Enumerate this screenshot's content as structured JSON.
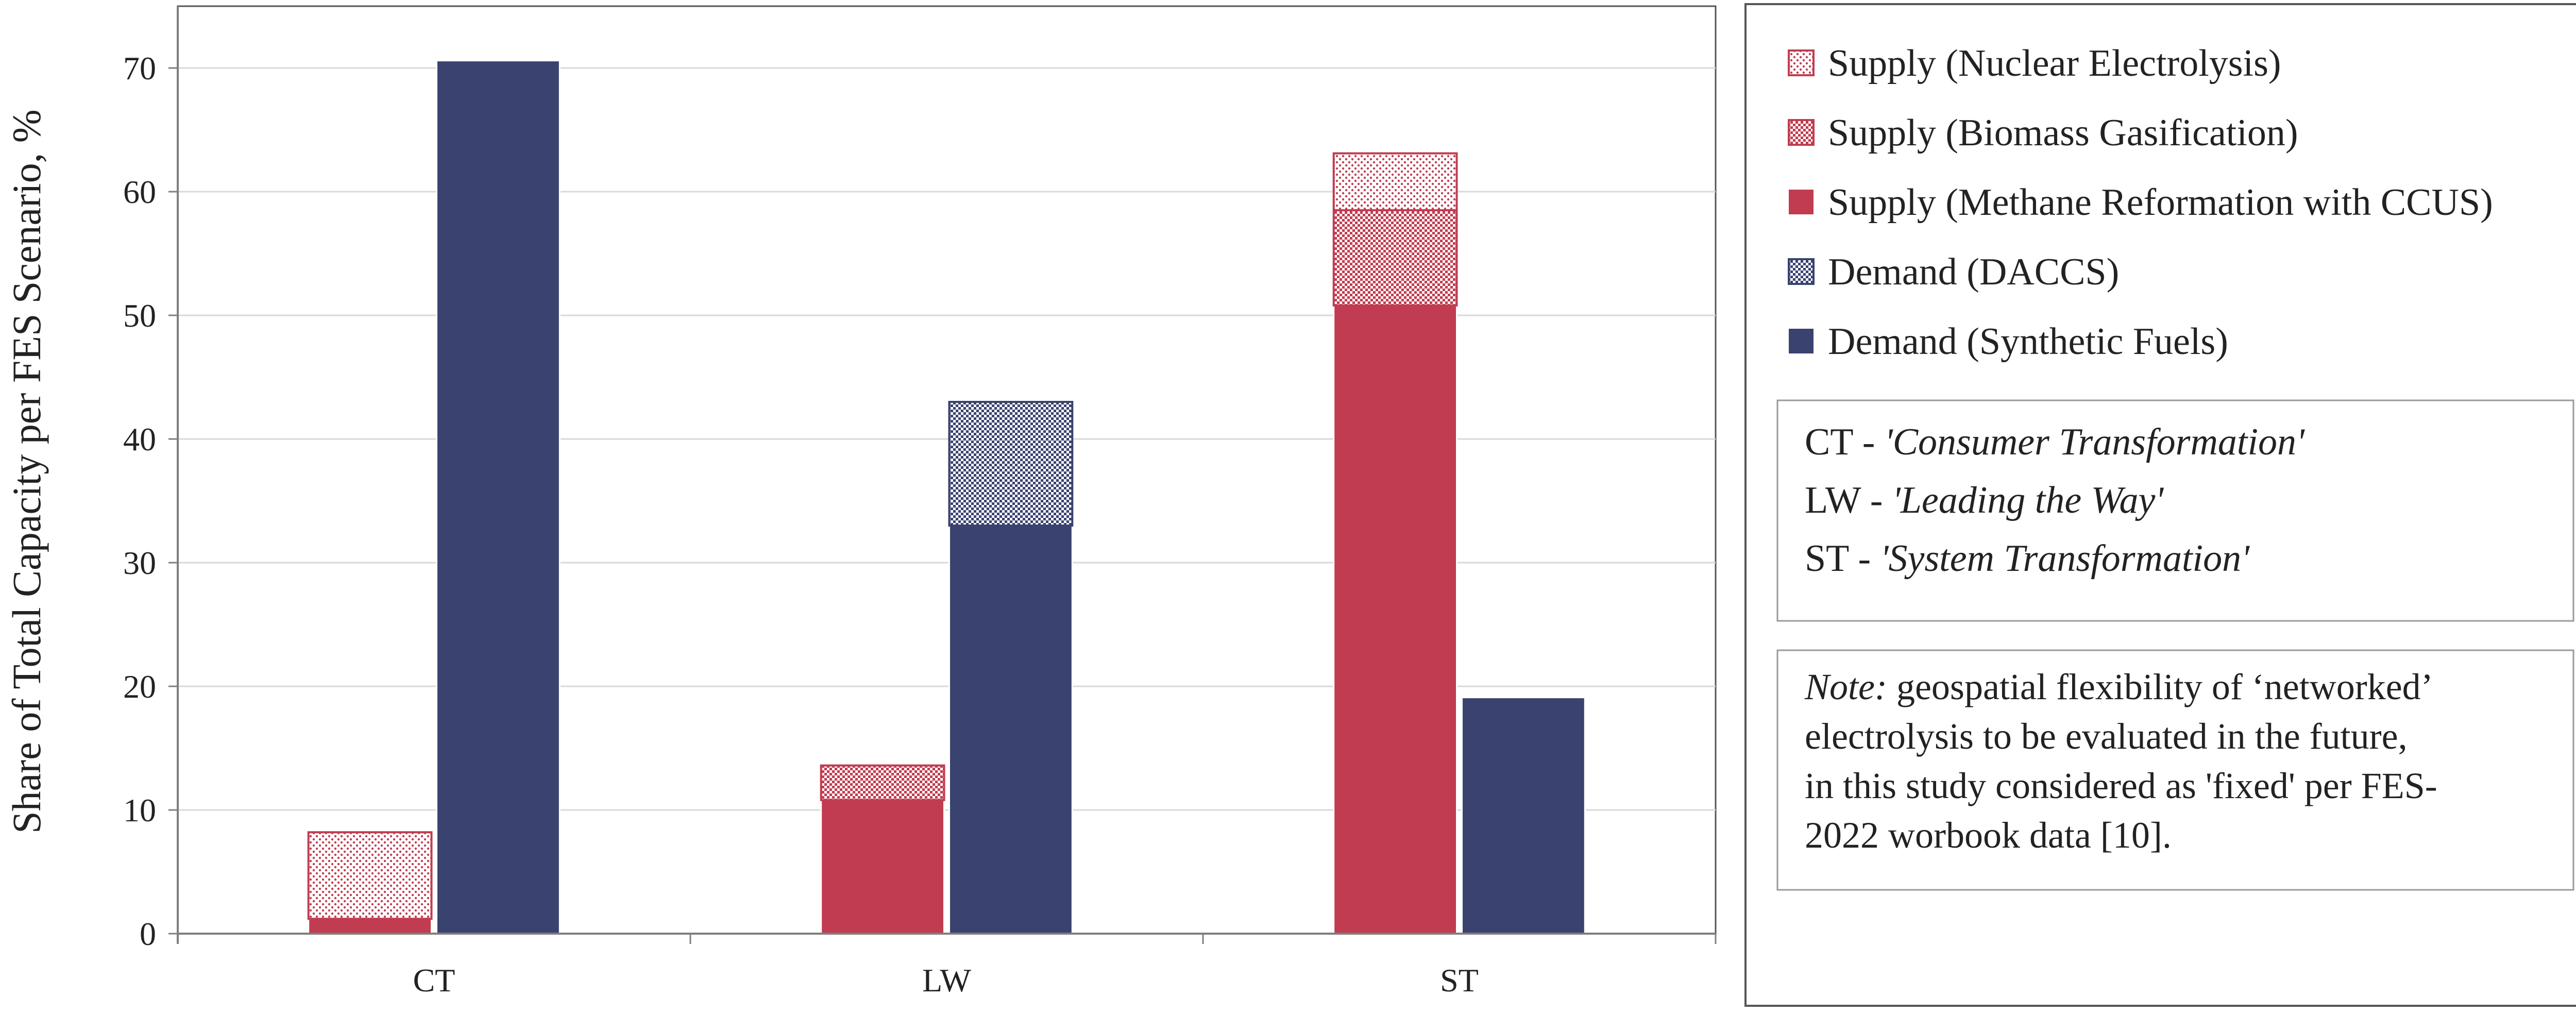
{
  "colors": {
    "supply": "#c13c50",
    "demand": "#3a426f",
    "grid": "#d9d9d9",
    "axis": "#7f7f7f",
    "frame": "#555555"
  },
  "chart_data": {
    "type": "bar",
    "stacked": true,
    "categories": [
      "CT",
      "LW",
      "ST"
    ],
    "ylabel": "Share of Total Capacity per FES Scenario, %",
    "xlabel": "",
    "ylim": [
      0,
      75
    ],
    "yticks": [
      0,
      10,
      20,
      30,
      40,
      50,
      60,
      70
    ],
    "grid": true,
    "legend_position": "right",
    "groups": [
      {
        "name": "Supply",
        "series": [
          {
            "name": "Supply (Methane Reformation with CCUS)",
            "pattern": "solid",
            "color": "#c13c50",
            "values": [
              1.2,
              10.8,
              50.8
            ]
          },
          {
            "name": "Supply (Biomass Gasification)",
            "pattern": "checker",
            "color": "#c13c50",
            "values": [
              0,
              2.8,
              7.7
            ]
          },
          {
            "name": "Supply (Nuclear Electrolysis)",
            "pattern": "dots",
            "color": "#c13c50",
            "values": [
              7.0,
              0,
              4.6
            ]
          }
        ]
      },
      {
        "name": "Demand",
        "series": [
          {
            "name": "Demand (Synthetic Fuels)",
            "pattern": "solid",
            "color": "#3a426f",
            "values": [
              70.6,
              33.0,
              19.1
            ]
          },
          {
            "name": "Demand (DACCS)",
            "pattern": "checker",
            "color": "#3a426f",
            "values": [
              0,
              10.0,
              0
            ]
          }
        ]
      }
    ],
    "legend": [
      "Supply (Nuclear Electrolysis)",
      "Supply (Biomass Gasification)",
      "Supply (Methane Reformation with CCUS)",
      "Demand (DACCS)",
      "Demand (Synthetic Fuels)"
    ]
  },
  "abbreviations": [
    {
      "code": "CT - ",
      "name": "'Consumer Transformation'"
    },
    {
      "code": "LW - ",
      "name": "'Leading the Way'"
    },
    {
      "code": "ST - ",
      "name": "'System Transformation'"
    }
  ],
  "note": {
    "label": "Note:",
    "lines": [
      " geospatial flexibility of ‘networked’",
      "electrolysis to be evaluated in the future,",
      "in this study considered as 'fixed' per FES-",
      "2022 worbook data [10]."
    ]
  }
}
